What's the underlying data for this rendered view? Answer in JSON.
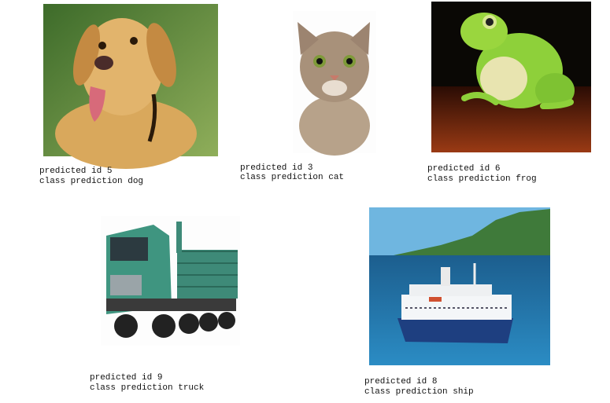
{
  "predictions": [
    {
      "id_text": "predicted id 5",
      "class_text": "class prediction dog"
    },
    {
      "id_text": "predicted id 3",
      "class_text": "class prediction cat"
    },
    {
      "id_text": "predicted id 6",
      "class_text": "class prediction frog"
    },
    {
      "id_text": "predicted id 9",
      "class_text": "class prediction truck"
    },
    {
      "id_text": "predicted id 8",
      "class_text": "class prediction ship"
    }
  ]
}
